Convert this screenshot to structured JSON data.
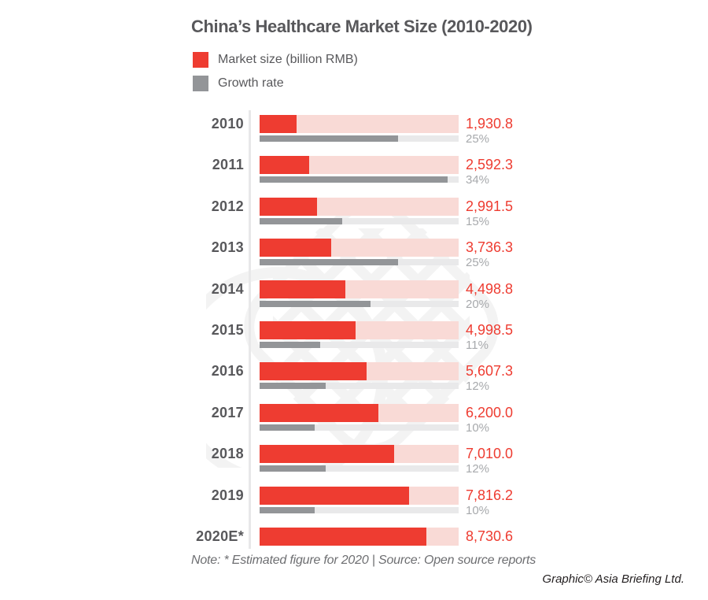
{
  "title": "China’s Healthcare Market Size (2010-2020)",
  "legend": [
    {
      "label": "Market size (billion RMB)",
      "color": "#ee3c31"
    },
    {
      "label": "Growth rate",
      "color": "#939598"
    }
  ],
  "note": "Note: * Estimated figure for 2020 | Source: Open source reports",
  "credit": "Graphic© Asia Briefing Ltd.",
  "colors": {
    "market_bar": "#ee3c31",
    "market_track": "#f9dad6",
    "growth_bar": "#939598",
    "growth_track": "#e9e9ea",
    "title_text": "#58585b",
    "year_text": "#58585b",
    "value_text": "#ee3c31",
    "percent_text": "#a7a9ac",
    "note_text": "#6d6e71",
    "credit_text": "#231f20"
  },
  "chart_data": {
    "type": "bar",
    "orientation": "horizontal",
    "title": "China’s Healthcare Market Size (2010-2020)",
    "categories": [
      "2010",
      "2011",
      "2012",
      "2013",
      "2014",
      "2015",
      "2016",
      "2017",
      "2018",
      "2019",
      "2020E*"
    ],
    "series": [
      {
        "name": "Market size (billion RMB)",
        "values": [
          1930.8,
          2592.3,
          2991.5,
          3736.3,
          4498.8,
          4998.5,
          5607.3,
          6200.0,
          7010.0,
          7816.2,
          8730.6
        ],
        "labels": [
          "1,930.8",
          "2,592.3",
          "2,991.5",
          "3,736.3",
          "4,498.8",
          "4,998.5",
          "5,607.3",
          "6,200.0",
          "7,010.0",
          "7,816.2",
          "8,730.6"
        ]
      },
      {
        "name": "Growth rate",
        "values": [
          25,
          34,
          15,
          25,
          20,
          11,
          12,
          10,
          12,
          10,
          null
        ],
        "labels": [
          "25%",
          "34%",
          "15%",
          "25%",
          "20%",
          "11%",
          "12%",
          "10%",
          "12%",
          "10%",
          null
        ]
      }
    ],
    "market_axis_max": 10400,
    "growth_axis_max": 36,
    "grid": false,
    "legend_position": "top-left"
  }
}
